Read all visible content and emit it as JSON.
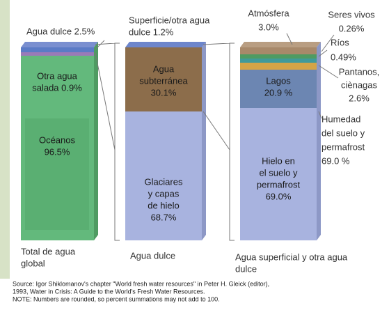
{
  "top_labels": {
    "fresh": [
      "Agua dulce 2.5%"
    ],
    "surface": [
      "Superficie/otra agua",
      "dulce 1.2%"
    ],
    "atmosphere": [
      "Atmósfera",
      "3.0%"
    ],
    "living": [
      "Seres vivos",
      "0.26%"
    ],
    "rivers": [
      "Ríos",
      "0.49%"
    ],
    "wetlands": [
      "Pantanos,",
      "ciènagas",
      "2.6%"
    ],
    "soil": [
      "Humedad",
      "del suelo y",
      "permafrost",
      "69.0 %"
    ]
  },
  "columns": [
    {
      "caption": [
        "Total de agua",
        "global"
      ],
      "segments": [
        [
          "Otra agua",
          "salada 0.9%"
        ],
        [
          "Océanos",
          "96.5%"
        ]
      ]
    },
    {
      "caption": [
        "Agua dulce"
      ],
      "segments": [
        [
          "Agua",
          "subterránea",
          "30.1%"
        ],
        [
          "Glaciares",
          "y capas",
          "de hielo",
          "68.7%"
        ]
      ]
    },
    {
      "caption": [
        "Agua superficial y otra agua",
        "dulce"
      ],
      "segments": [
        [
          "Lagos",
          "20.9 %"
        ],
        [
          "Hielo en",
          "el suelo y",
          "permafrost",
          "69.0%"
        ]
      ]
    }
  ],
  "source": [
    "Source: Igor Shiklomanov's chapter \"World fresh water resources\" in Peter H. Gleick (editor),",
    "1993, Water in Crisis: A Guide to the World's Fresh Water Resources.",
    "NOTE: Numbers are rounded, so percent summations may not add to 100."
  ]
}
